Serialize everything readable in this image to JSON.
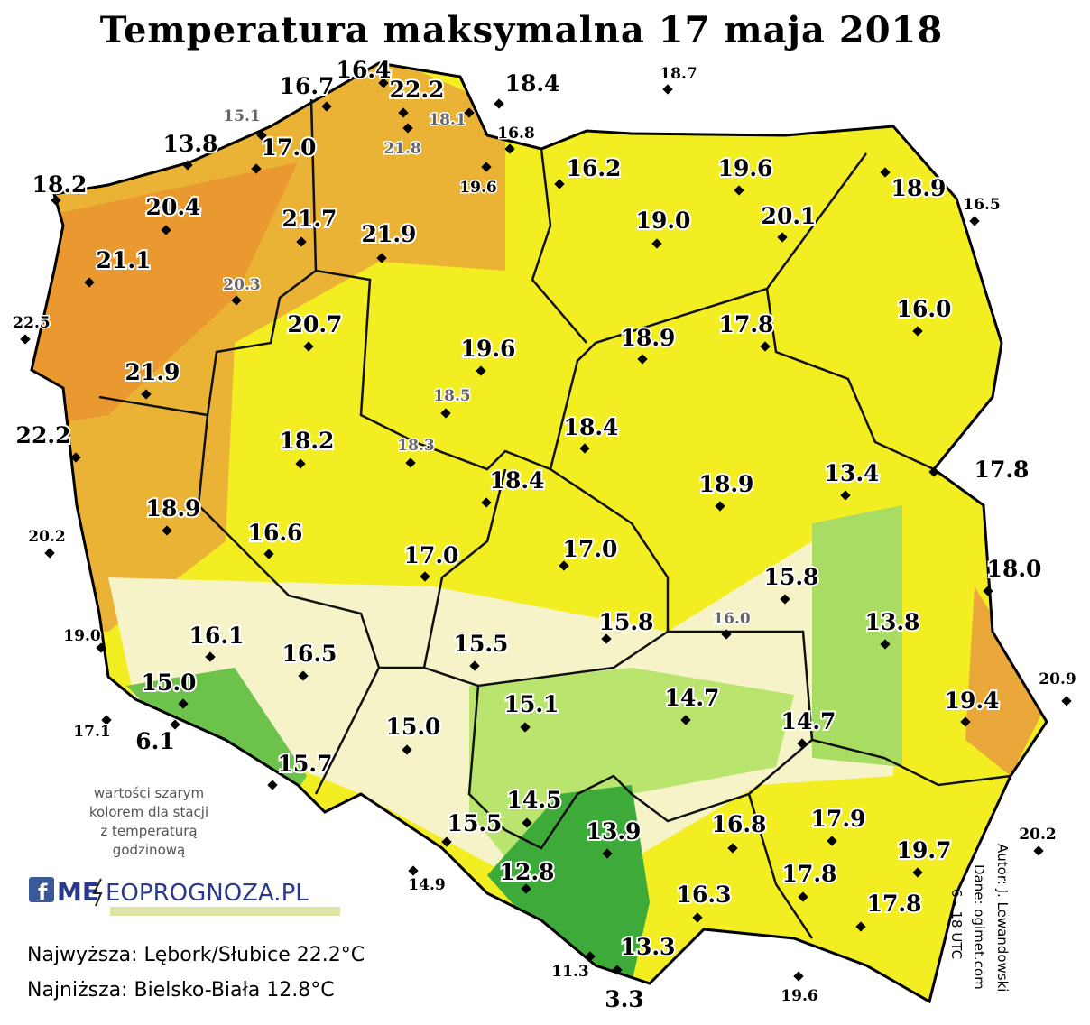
{
  "title": "Temperatura maksymalna 17 maja 2018",
  "stations": [
    "16.7",
    "16.4",
    "22.2",
    "18.4",
    "18.7",
    "15.1",
    "18.1",
    "21.8",
    "16.8",
    "13.8",
    "17.0",
    "19.6",
    "16.2",
    "19.6",
    "18.2",
    "18.9",
    "16.5",
    "20.4",
    "21.7",
    "21.9",
    "19.0",
    "20.1",
    "21.1",
    "20.3",
    "16.0",
    "22.5",
    "20.7",
    "17.8",
    "18.9",
    "19.6",
    "21.9",
    "18.5",
    "22.2",
    "18.2",
    "18.3",
    "18.4",
    "18.4",
    "13.4",
    "17.8",
    "18.9",
    "18.9",
    "20.2",
    "16.6",
    "17.0",
    "17.0",
    "18.0",
    "15.8",
    "16.0",
    "15.8",
    "19.0",
    "16.1",
    "13.8",
    "15.5",
    "16.5",
    "15.0",
    "20.9",
    "14.7",
    "19.4",
    "15.1",
    "14.7",
    "17.1",
    "6.1",
    "15.0",
    "15.7",
    "14.5",
    "17.9",
    "15.5",
    "13.9",
    "16.8",
    "20.2",
    "19.7",
    "14.9",
    "12.8",
    "17.8",
    "16.3",
    "17.8",
    "13.3",
    "11.3",
    "3.3",
    "19.6"
  ],
  "note": [
    "wartości szarym",
    "kolorem dla stacji",
    "z temperaturą",
    "godzinową"
  ],
  "logo": {
    "left": "ME",
    "right": "EOPROGNOZA.PL"
  },
  "highest": "Najwyższa: Lębork/Słubice 22.2°C",
  "lowest": "Najniższa: Bielsko-Biała 12.8°C",
  "credits": [
    "Autor: J. Lewandowski",
    "Dane: ogimet.com",
    "6 - 18 UTC"
  ]
}
